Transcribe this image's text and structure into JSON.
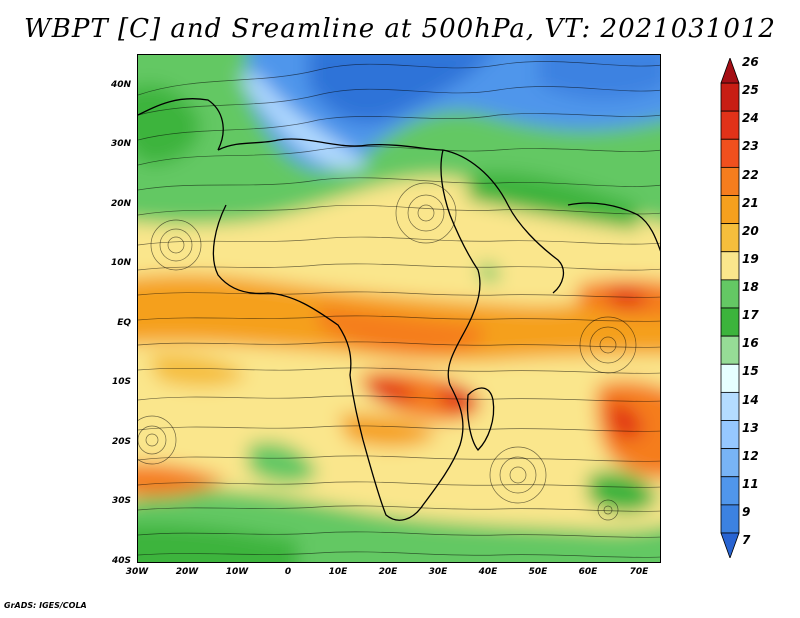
{
  "title": "WBPT [C] and Sreamline at 500hPa, VT: 2021031012",
  "lat_labels": [
    "40N",
    "30N",
    "20N",
    "10N",
    "EQ",
    "10S",
    "20S",
    "30S",
    "40S"
  ],
  "lon_labels": [
    "30W",
    "20W",
    "10W",
    "0",
    "10E",
    "20E",
    "30E",
    "40E",
    "50E",
    "60E",
    "70E"
  ],
  "colorbar": {
    "labels": [
      "26",
      "25",
      "24",
      "23",
      "22",
      "21",
      "20",
      "19",
      "18",
      "17",
      "16",
      "15",
      "14",
      "13",
      "12",
      "11",
      "9",
      "7"
    ],
    "colors": [
      "#a50f15",
      "#c81e14",
      "#e13219",
      "#f0501e",
      "#f57d1e",
      "#f5a01e",
      "#f5be3c",
      "#fae68c",
      "#64c864",
      "#3cb43c",
      "#96dc96",
      "#e6ffff",
      "#b4dcff",
      "#96c8ff",
      "#78b4f5",
      "#5096eb",
      "#3c82e1",
      "#2864d2"
    ]
  },
  "credit": "GrADS: IGES/COLA"
}
